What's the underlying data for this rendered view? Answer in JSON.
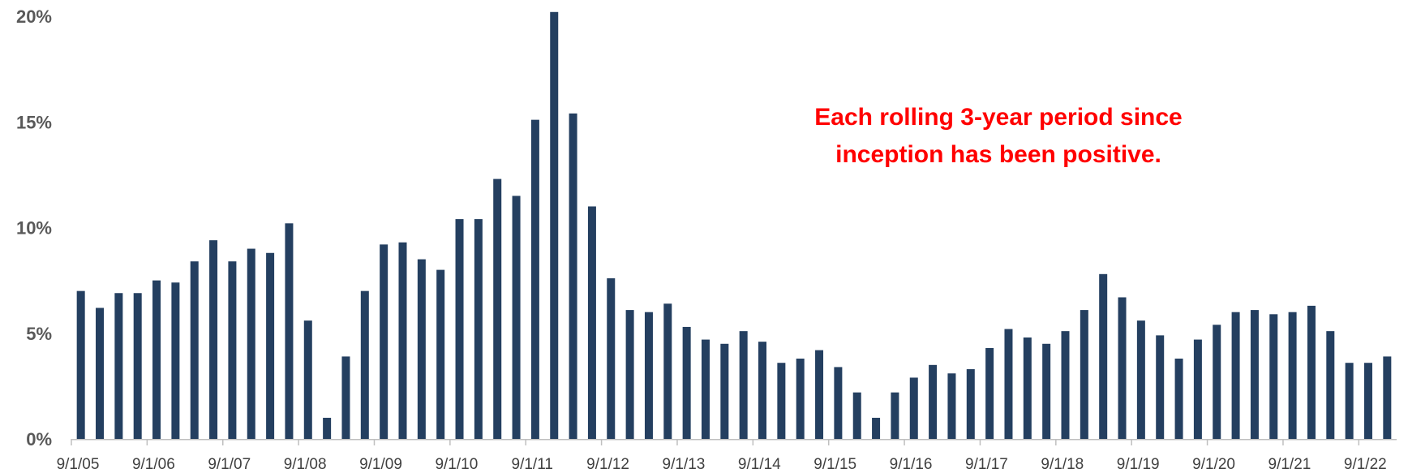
{
  "chart_data": {
    "type": "bar",
    "title": "",
    "xlabel": "",
    "ylabel": "",
    "ylim": [
      0,
      20
    ],
    "y_ticks": [
      "0%",
      "5%",
      "10%",
      "15%",
      "20%"
    ],
    "x_tick_labels": [
      "9/1/05",
      "9/1/06",
      "9/1/07",
      "9/1/08",
      "9/1/09",
      "9/1/10",
      "9/1/11",
      "9/1/12",
      "9/1/13",
      "9/1/14",
      "9/1/15",
      "9/1/16",
      "9/1/17",
      "9/1/18",
      "9/1/19",
      "9/1/20",
      "9/1/21",
      "9/1/22"
    ],
    "bar_color": "#243f60",
    "grid": false,
    "annotation": [
      "Each rolling 3-year period since",
      "inception has been positive."
    ],
    "values": [
      7.0,
      6.2,
      6.9,
      6.9,
      7.5,
      7.4,
      8.4,
      9.4,
      8.4,
      9.0,
      8.8,
      10.2,
      5.6,
      1.0,
      3.9,
      7.0,
      9.2,
      9.3,
      8.5,
      8.0,
      10.4,
      10.4,
      12.3,
      11.5,
      15.1,
      20.2,
      15.4,
      11.0,
      7.6,
      6.1,
      6.0,
      6.4,
      5.3,
      4.7,
      4.5,
      5.1,
      4.6,
      3.6,
      3.8,
      4.2,
      3.4,
      2.2,
      1.0,
      2.2,
      2.9,
      3.5,
      3.1,
      3.3,
      4.3,
      5.2,
      4.8,
      4.5,
      5.1,
      6.1,
      7.8,
      6.7,
      5.6,
      4.9,
      3.8,
      4.7,
      5.4,
      6.0,
      6.1,
      5.9,
      6.0,
      6.3,
      5.1,
      3.6,
      3.6,
      3.9
    ]
  }
}
